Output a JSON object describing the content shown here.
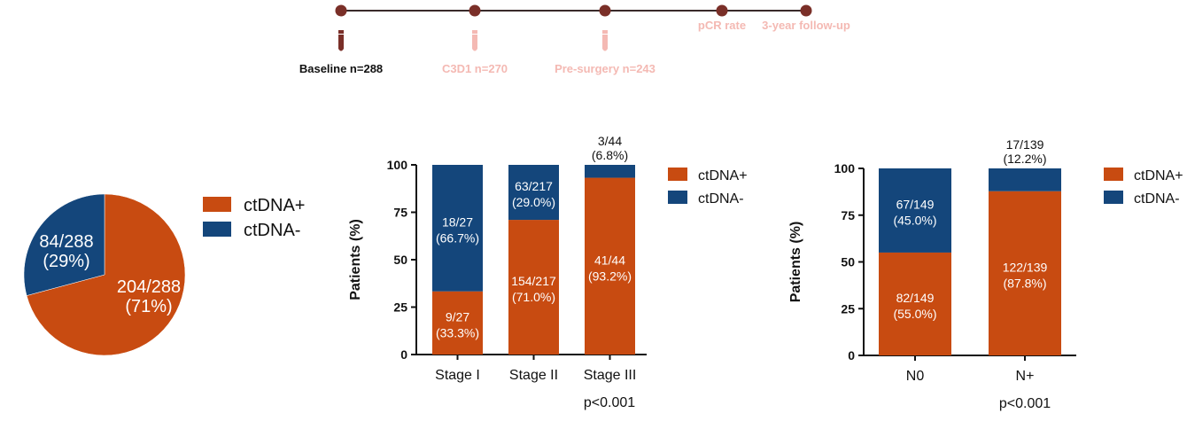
{
  "colors": {
    "positive": "#c84b11",
    "negative": "#14467b",
    "timeline": "#7a2f28",
    "faded": "#f4b9b3"
  },
  "timeline": {
    "points": [
      {
        "label": "Baseline n=288",
        "tube": true,
        "active": true
      },
      {
        "label": "C3D1 n=270",
        "tube": true,
        "active": false
      },
      {
        "label": "Pre-surgery n=243",
        "tube": true,
        "active": false
      },
      {
        "label": "pCR rate",
        "tube": false,
        "active": false
      },
      {
        "label": "3-year follow-up",
        "tube": false,
        "active": false
      }
    ]
  },
  "chart_data": [
    {
      "type": "pie",
      "slices": [
        {
          "name": "ctDNA+",
          "value": 204,
          "label_line1": "204/288",
          "label_line2": "(71%)"
        },
        {
          "name": "ctDNA-",
          "value": 84,
          "label_line1": "84/288",
          "label_line2": "(29%)"
        }
      ],
      "legend": [
        "ctDNA+",
        "ctDNA-"
      ],
      "legend_position": "right"
    },
    {
      "type": "bar",
      "stacked": true,
      "categories": [
        "Stage I",
        "Stage II",
        "Stage III"
      ],
      "series": [
        {
          "name": "ctDNA+",
          "values": [
            33.3,
            71.0,
            93.2
          ],
          "labels": [
            [
              "9/27",
              "(33.3%)"
            ],
            [
              "154/217",
              "(71.0%)"
            ],
            [
              "41/44",
              "(93.2%)"
            ]
          ]
        },
        {
          "name": "ctDNA-",
          "values": [
            66.7,
            29.0,
            6.8
          ],
          "labels": [
            [
              "18/27",
              "(66.7%)"
            ],
            [
              "63/217",
              "(29.0%)"
            ],
            [
              "3/44",
              "(6.8%)"
            ]
          ]
        }
      ],
      "ylabel": "Patients (%)",
      "ylim": [
        0,
        100
      ],
      "yticks": [
        0,
        25,
        50,
        75,
        100
      ],
      "annotation": "p<0.001",
      "legend_position": "right"
    },
    {
      "type": "bar",
      "stacked": true,
      "categories": [
        "N0",
        "N+"
      ],
      "series": [
        {
          "name": "ctDNA+",
          "values": [
            55.0,
            87.8
          ],
          "labels": [
            [
              "82/149",
              "(55.0%)"
            ],
            [
              "122/139",
              "(87.8%)"
            ]
          ]
        },
        {
          "name": "ctDNA-",
          "values": [
            45.0,
            12.2
          ],
          "labels": [
            [
              "67/149",
              "(45.0%)"
            ],
            [
              "17/139",
              "(12.2%)"
            ]
          ]
        }
      ],
      "ylabel": "Patients (%)",
      "ylim": [
        0,
        100
      ],
      "yticks": [
        0,
        25,
        50,
        75,
        100
      ],
      "annotation": "p<0.001",
      "legend_position": "right"
    }
  ]
}
